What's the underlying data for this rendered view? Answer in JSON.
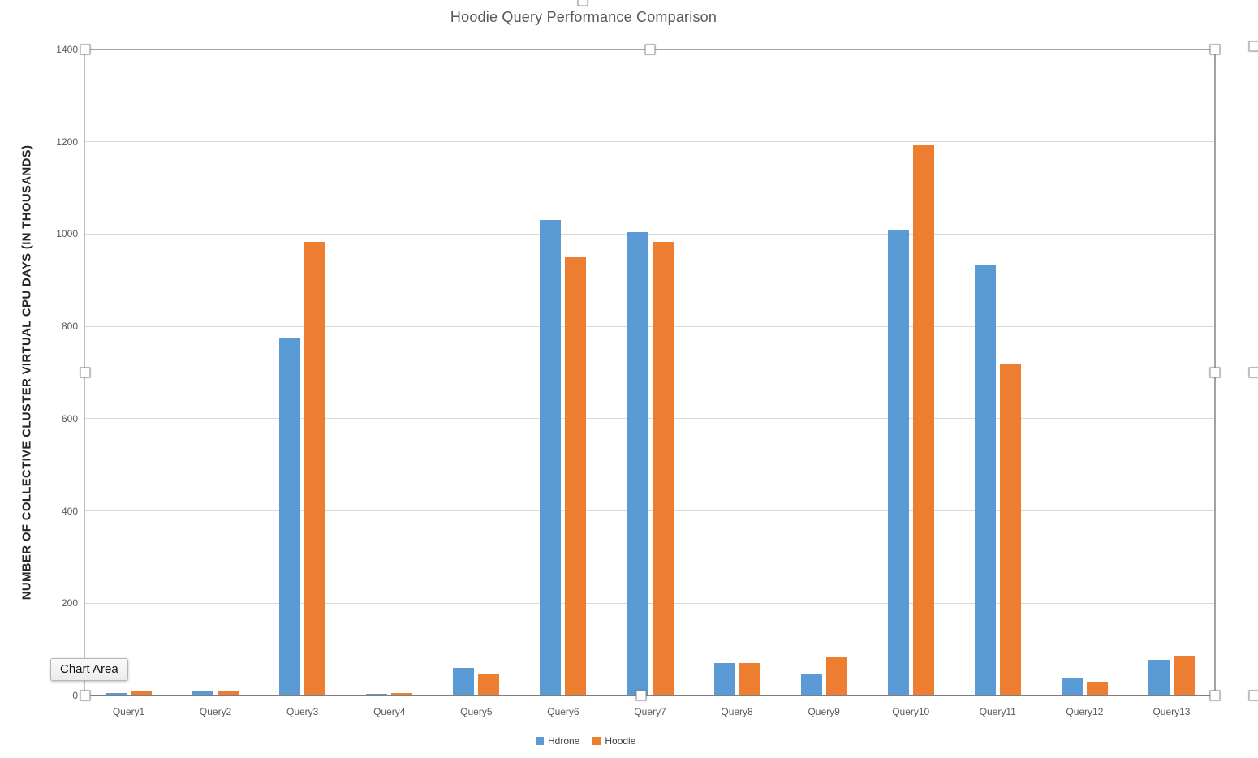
{
  "tooltip": {
    "label": "Chart Area"
  },
  "colors": {
    "series_blue": "#5B9BD5",
    "series_orange": "#ED7D31",
    "gridline": "#D9D9D9",
    "axis_text": "#595959",
    "title_text": "#595959",
    "selection_border": "#A3A3A3"
  },
  "chart_data": {
    "type": "bar",
    "title": "Hoodie Query Performance Comparison",
    "xlabel": "",
    "ylabel": "NUMBER OF COLLECTIVE CLUSTER VIRTUAL CPU DAYS (IN THOUSANDS)",
    "categories": [
      "Query1",
      "Query2",
      "Query3",
      "Query4",
      "Query5",
      "Query6",
      "Query7",
      "Query8",
      "Query9",
      "Query10",
      "Query11",
      "Query12",
      "Query13"
    ],
    "series": [
      {
        "name": "Hdrone",
        "color": "#5B9BD5",
        "values": [
          5,
          10,
          775,
          4,
          60,
          1030,
          1004,
          70,
          45,
          1008,
          934,
          39,
          78
        ]
      },
      {
        "name": "Hoodie",
        "color": "#ED7D31",
        "values": [
          8,
          10,
          983,
          5,
          48,
          949,
          983,
          70,
          82,
          1193,
          718,
          30,
          86
        ]
      }
    ],
    "ylim": [
      0,
      1400
    ],
    "yticks": [
      0,
      200,
      400,
      600,
      800,
      1000,
      1200,
      1400
    ],
    "grid": true,
    "legend_position": "bottom",
    "state": "plot-area-selected"
  }
}
